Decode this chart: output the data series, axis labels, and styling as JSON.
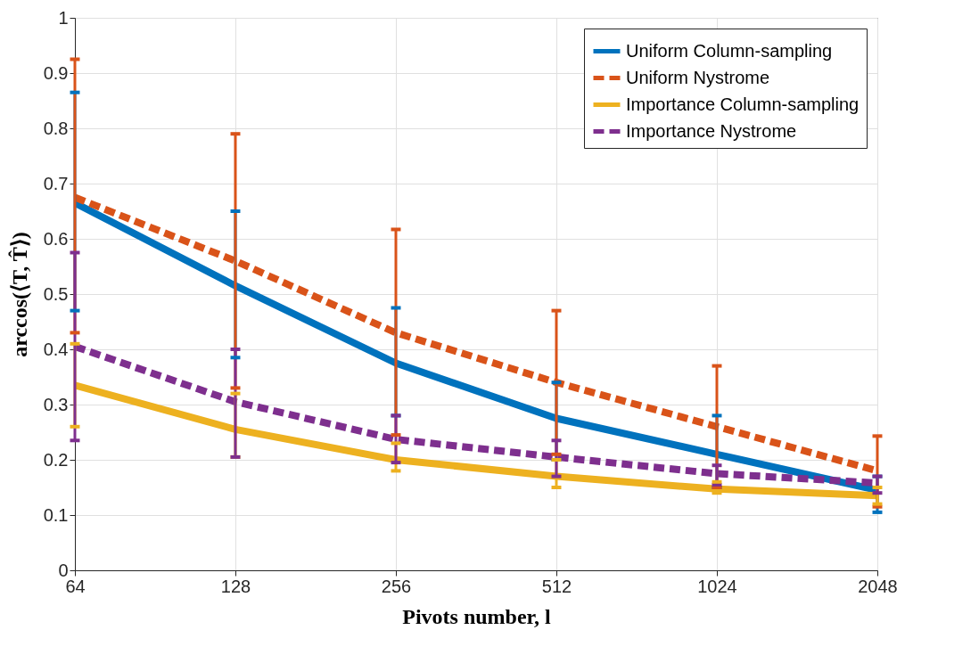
{
  "chart_data": {
    "type": "line",
    "xlabel": "Pivots number, l",
    "ylabel": "arccos(⟨T, T̂⟩)",
    "x": [
      64,
      128,
      256,
      512,
      1024,
      2048
    ],
    "xlim": [
      64,
      2048
    ],
    "xticks": [
      64,
      128,
      256,
      512,
      1024,
      2048
    ],
    "ylim": [
      0,
      1
    ],
    "yticks": [
      0,
      0.1,
      0.2,
      0.3,
      0.4,
      0.5,
      0.6,
      0.7,
      0.8,
      0.9,
      1
    ],
    "log": "x",
    "grid": true,
    "legend": "top right",
    "marker": "none",
    "series": [
      {
        "name": "Uniform Column-sampling",
        "color": "#0072bd",
        "line_style": "solid",
        "values": [
          0.665,
          0.515,
          0.375,
          0.275,
          0.21,
          0.145
        ],
        "errors": [
          [
            0.47,
            0.865
          ],
          [
            0.385,
            0.65
          ],
          [
            0.28,
            0.475
          ],
          [
            0.2,
            0.34
          ],
          [
            0.15,
            0.28
          ],
          [
            0.105,
            0.17
          ]
        ]
      },
      {
        "name": "Uniform Nystrome",
        "color": "#d95319",
        "line_style": "dashed",
        "values": [
          0.675,
          0.56,
          0.43,
          0.34,
          0.26,
          0.18
        ],
        "errors": [
          [
            0.43,
            0.925
          ],
          [
            0.33,
            0.79
          ],
          [
            0.245,
            0.617
          ],
          [
            0.21,
            0.47
          ],
          [
            0.15,
            0.37
          ],
          [
            0.115,
            0.243
          ]
        ]
      },
      {
        "name": "Importance Column-sampling",
        "color": "#edb120",
        "line_style": "solid",
        "values": [
          0.335,
          0.255,
          0.2,
          0.17,
          0.147,
          0.135
        ],
        "errors": [
          [
            0.26,
            0.41
          ],
          [
            0.205,
            0.32
          ],
          [
            0.18,
            0.23
          ],
          [
            0.15,
            0.2
          ],
          [
            0.14,
            0.16
          ],
          [
            0.12,
            0.15
          ]
        ]
      },
      {
        "name": "Importance Nystrome",
        "color": "#7e2f8e",
        "line_style": "dashed",
        "values": [
          0.405,
          0.305,
          0.237,
          0.205,
          0.175,
          0.158
        ],
        "errors": [
          [
            0.235,
            0.575
          ],
          [
            0.205,
            0.4
          ],
          [
            0.195,
            0.28
          ],
          [
            0.17,
            0.235
          ],
          [
            0.155,
            0.19
          ],
          [
            0.14,
            0.17
          ]
        ]
      }
    ]
  }
}
